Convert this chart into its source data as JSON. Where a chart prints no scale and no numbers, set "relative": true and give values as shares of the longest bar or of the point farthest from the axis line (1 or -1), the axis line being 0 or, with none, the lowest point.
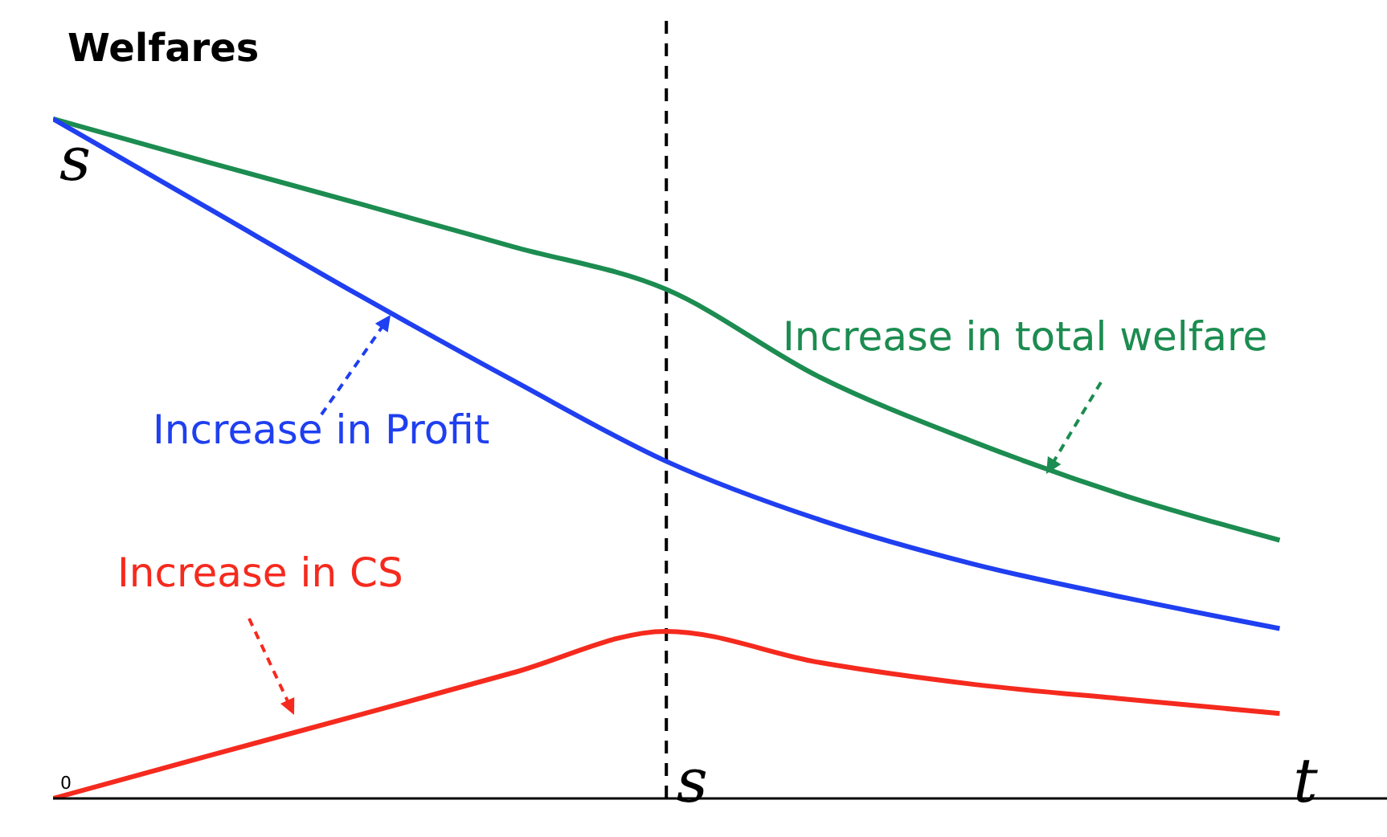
{
  "chart_data": {
    "type": "line",
    "relative": true,
    "ylabel": "Welfares",
    "categories": [
      "0",
      null,
      null,
      null,
      "s",
      null,
      null,
      null,
      "t"
    ],
    "series": [
      {
        "name": "Increase in total welfare",
        "color": "#1c8c50",
        "values": [
          1,
          0.937,
          0.875,
          0.812,
          0.749,
          0.62,
          0.525,
          0.445,
          0.38
        ]
      },
      {
        "name": "Increase in Profit",
        "color": "#1f3ff0",
        "values": [
          1,
          0.87,
          0.74,
          0.615,
          0.496,
          0.41,
          0.345,
          0.295,
          0.25
        ]
      },
      {
        "name": "Increase in CS",
        "color": "#f52a1e",
        "values": [
          0,
          0.062,
          0.123,
          0.185,
          0.246,
          0.2,
          0.168,
          0.146,
          0.125
        ]
      }
    ],
    "ref_lines": [
      {
        "axis": "x",
        "value": "s",
        "color": "#000000",
        "line_style": "dashed"
      }
    ],
    "annotations": [
      "s"
    ],
    "marker": "none",
    "line_style": "solid"
  }
}
